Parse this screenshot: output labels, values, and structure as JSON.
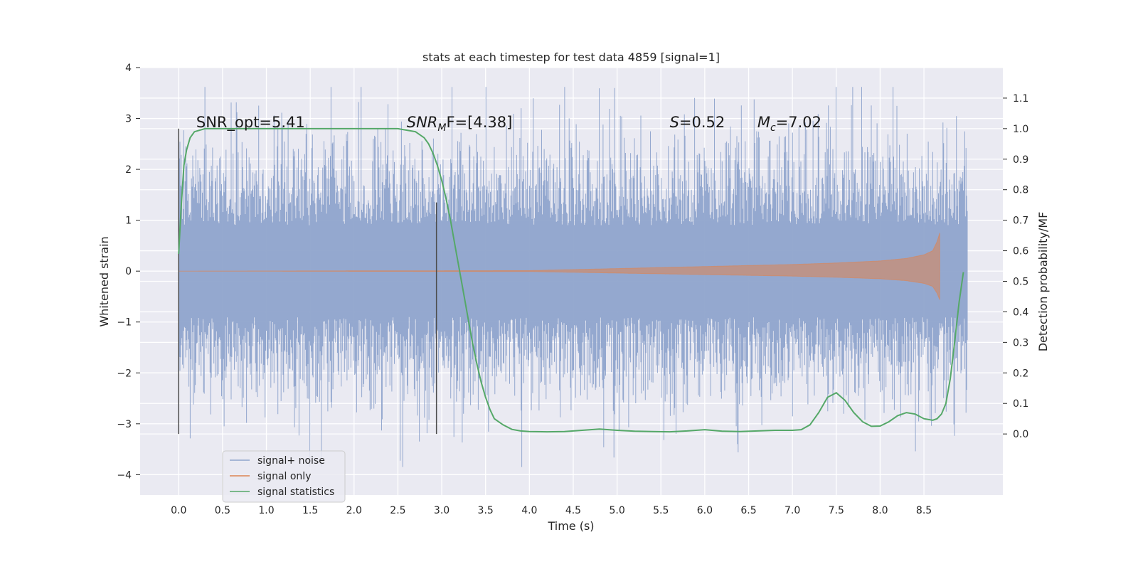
{
  "chart_data": {
    "type": "line",
    "title": "stats at each timestep for test data 4859 [signal=1]",
    "xlabel": "Time (s)",
    "ylabel_left": "Whitened strain",
    "ylabel_right": "Detection probability/MF",
    "xlim": [
      -0.44,
      9.4
    ],
    "ylim_left": [
      -4.4,
      4.0
    ],
    "ylim_right": [
      -0.2,
      1.2
    ],
    "x_ticks": [
      "0.0",
      "0.5",
      "1.0",
      "1.5",
      "2.0",
      "2.5",
      "3.0",
      "3.5",
      "4.0",
      "4.5",
      "5.0",
      "5.5",
      "6.0",
      "6.5",
      "7.0",
      "7.5",
      "8.0",
      "8.5"
    ],
    "x_tick_values": [
      0.0,
      0.5,
      1.0,
      1.5,
      2.0,
      2.5,
      3.0,
      3.5,
      4.0,
      4.5,
      5.0,
      5.5,
      6.0,
      6.5,
      7.0,
      7.5,
      8.0,
      8.5
    ],
    "y_left_ticks": [
      "4",
      "3",
      "2",
      "1",
      "0",
      "−1",
      "−2",
      "−3",
      "−4"
    ],
    "y_left_tick_values": [
      4,
      3,
      2,
      1,
      0,
      -1,
      -2,
      -3,
      -4
    ],
    "y_right_ticks": [
      "1.1",
      "1.0",
      "0.9",
      "0.8",
      "0.7",
      "0.6",
      "0.5",
      "0.4",
      "0.3",
      "0.2",
      "0.1",
      "0.0"
    ],
    "y_right_tick_values": [
      1.1,
      1.0,
      0.9,
      0.8,
      0.7,
      0.6,
      0.5,
      0.4,
      0.3,
      0.2,
      0.1,
      0.0
    ],
    "grid": true,
    "legend_position": "lower-left",
    "colors": {
      "background": "#eaeaf2",
      "grid": "#ffffff",
      "signal_noise": "#8fa4cc",
      "signal_only": "#dd8452",
      "signal_statistics": "#55a868",
      "vline": "#4c4c4c"
    },
    "annotations": [
      {
        "x": 0.2,
        "y": 2.8,
        "text": "SNR_opt=5.41"
      },
      {
        "x": 2.6,
        "y": 2.8,
        "base": "SNR",
        "sub": "M",
        "rest": "F=[4.38]"
      },
      {
        "x": 5.6,
        "y": 2.8,
        "base": "S",
        "sub": "",
        "rest": "=0.52"
      },
      {
        "x": 6.6,
        "y": 2.8,
        "base": "M",
        "sub": "c",
        "rest": "=7.02"
      }
    ],
    "vertical_lines": [
      {
        "x": 0.0,
        "y_from": -3.2,
        "y_to": 2.8
      },
      {
        "x": 2.94,
        "y_from": -3.2,
        "y_to": 1.35
      }
    ],
    "series": [
      {
        "name": "signal+ noise",
        "axis": "left",
        "noise_envelope": {
          "x_start": 0.0,
          "x_end": 9.0,
          "typical_amplitude": 1.6,
          "max": 3.62,
          "min": -3.85
        }
      },
      {
        "name": "signal only",
        "axis": "left",
        "chirp_envelope": {
          "x": [
            0.0,
            4.0,
            4.5,
            5.0,
            5.5,
            6.0,
            6.5,
            7.0,
            7.5,
            8.0,
            8.3,
            8.5,
            8.6,
            8.65,
            8.68
          ],
          "amplitude": [
            0.0,
            0.01,
            0.03,
            0.05,
            0.07,
            0.09,
            0.11,
            0.13,
            0.16,
            0.2,
            0.25,
            0.32,
            0.4,
            0.58,
            0.75
          ]
        }
      },
      {
        "name": "signal statistics",
        "axis": "right",
        "x": [
          0.0,
          0.03,
          0.06,
          0.09,
          0.13,
          0.18,
          0.3,
          0.5,
          1.0,
          1.5,
          2.0,
          2.5,
          2.6,
          2.7,
          2.8,
          2.85,
          2.9,
          2.95,
          3.0,
          3.05,
          3.1,
          3.15,
          3.2,
          3.25,
          3.3,
          3.35,
          3.4,
          3.45,
          3.5,
          3.55,
          3.6,
          3.7,
          3.8,
          3.9,
          4.0,
          4.2,
          4.4,
          4.6,
          4.8,
          5.0,
          5.2,
          5.4,
          5.6,
          5.8,
          6.0,
          6.2,
          6.4,
          6.6,
          6.8,
          7.0,
          7.1,
          7.2,
          7.3,
          7.4,
          7.5,
          7.6,
          7.7,
          7.8,
          7.9,
          8.0,
          8.1,
          8.2,
          8.3,
          8.4,
          8.5,
          8.6,
          8.65,
          8.7,
          8.75,
          8.8,
          8.85,
          8.9,
          8.95
        ],
        "y": [
          0.59,
          0.75,
          0.88,
          0.93,
          0.97,
          0.99,
          1.0,
          1.0,
          1.0,
          1.0,
          1.0,
          1.0,
          0.995,
          0.99,
          0.97,
          0.95,
          0.92,
          0.88,
          0.83,
          0.77,
          0.7,
          0.62,
          0.54,
          0.46,
          0.38,
          0.3,
          0.23,
          0.17,
          0.12,
          0.08,
          0.05,
          0.03,
          0.015,
          0.01,
          0.008,
          0.007,
          0.008,
          0.012,
          0.016,
          0.012,
          0.009,
          0.008,
          0.007,
          0.01,
          0.014,
          0.009,
          0.008,
          0.01,
          0.012,
          0.012,
          0.014,
          0.03,
          0.07,
          0.12,
          0.135,
          0.11,
          0.07,
          0.04,
          0.025,
          0.026,
          0.04,
          0.06,
          0.07,
          0.065,
          0.05,
          0.045,
          0.05,
          0.065,
          0.1,
          0.18,
          0.3,
          0.43,
          0.53
        ]
      }
    ]
  }
}
